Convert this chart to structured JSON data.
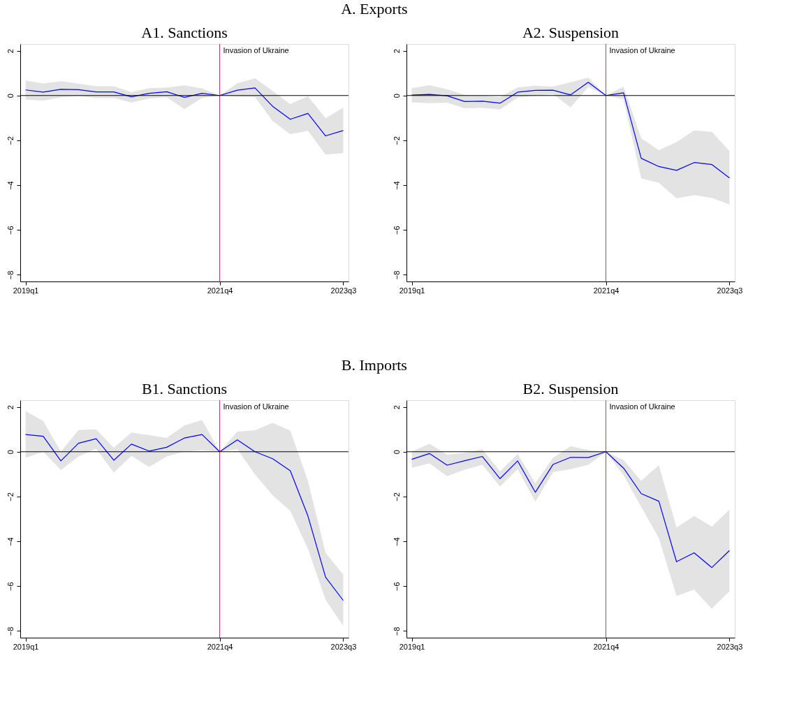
{
  "chart_data": [
    {
      "type": "line",
      "title": "A1. Sanctions",
      "annotations": [
        "A. Exports"
      ],
      "categories": [
        "2019q1",
        null,
        null,
        null,
        null,
        null,
        null,
        null,
        null,
        null,
        null,
        "2021q4",
        null,
        null,
        null,
        null,
        null,
        null,
        "2023q3"
      ],
      "series": [
        {
          "color": "#0000ff",
          "values": [
            0.25,
            0.15,
            0.28,
            0.26,
            0.16,
            0.16,
            -0.06,
            0.1,
            0.17,
            -0.08,
            0.1,
            0,
            0.24,
            0.34,
            -0.48,
            -1.06,
            -0.8,
            -1.8,
            -1.56
          ],
          "upper": [
            0.67,
            0.54,
            0.64,
            0.53,
            0.41,
            0.41,
            0.15,
            0.33,
            0.36,
            0.45,
            0.32,
            0,
            0.55,
            0.77,
            0.2,
            -0.38,
            -0.03,
            -1.01,
            -0.54
          ],
          "lower": [
            -0.18,
            -0.23,
            -0.08,
            -0.03,
            -0.11,
            -0.11,
            -0.31,
            -0.13,
            -0.08,
            -0.61,
            -0.11,
            0,
            -0.05,
            -0.07,
            -1.14,
            -1.73,
            -1.57,
            -2.63,
            -2.57
          ]
        }
      ],
      "ylim": [
        -8.3,
        2.3
      ],
      "yticks": [
        -8,
        -6,
        -4,
        -2,
        0,
        2
      ],
      "ref_lines": [
        {
          "axis": "x",
          "value": "2021q4",
          "label": "Invasion of Ukraine",
          "color": "#d8315b"
        },
        {
          "axis": "y",
          "value": 0,
          "color": "#000000"
        }
      ]
    },
    {
      "type": "line",
      "title": "A2. Suspension",
      "categories": [
        "2019q1",
        null,
        null,
        null,
        null,
        null,
        null,
        null,
        null,
        null,
        null,
        "2021q4",
        null,
        null,
        null,
        null,
        null,
        null,
        "2023q3"
      ],
      "series": [
        {
          "color": "#0000ff",
          "values": [
            0.02,
            0.05,
            -0.01,
            -0.27,
            -0.25,
            -0.34,
            0.15,
            0.23,
            0.24,
            0.03,
            0.59,
            0,
            0.12,
            -2.8,
            -3.17,
            -3.34,
            -2.99,
            -3.08,
            -3.68
          ],
          "upper": [
            0.33,
            0.46,
            0.28,
            0.03,
            0.01,
            -0.07,
            0.36,
            0.44,
            0.4,
            0.59,
            0.8,
            0,
            0.4,
            -1.91,
            -2.44,
            -2.08,
            -1.56,
            -1.62,
            -2.48
          ],
          "lower": [
            -0.3,
            -0.34,
            -0.32,
            -0.57,
            -0.55,
            -0.62,
            -0.09,
            -0.01,
            0.06,
            -0.53,
            0.38,
            0,
            -0.16,
            -3.7,
            -3.9,
            -4.59,
            -4.44,
            -4.57,
            -4.86
          ]
        }
      ],
      "ylim": [
        -8.3,
        2.3
      ],
      "yticks": [
        -8,
        -6,
        -4,
        -2,
        0,
        2
      ],
      "ref_lines": [
        {
          "axis": "x",
          "value": "2021q4",
          "label": "Invasion of Ukraine",
          "color": "#d8315b"
        },
        {
          "axis": "y",
          "value": 0,
          "color": "#000000"
        }
      ]
    },
    {
      "type": "line",
      "title": "B1. Sanctions",
      "annotations": [
        "B. Imports"
      ],
      "categories": [
        "2019q1",
        null,
        null,
        null,
        null,
        null,
        null,
        null,
        null,
        null,
        null,
        "2021q4",
        null,
        null,
        null,
        null,
        null,
        null,
        "2023q3"
      ],
      "series": [
        {
          "color": "#0000ff",
          "values": [
            0.77,
            0.69,
            -0.41,
            0.38,
            0.58,
            -0.38,
            0.34,
            0.03,
            0.2,
            0.61,
            0.77,
            0,
            0.53,
            0,
            -0.31,
            -0.85,
            -2.87,
            -5.6,
            -6.64
          ],
          "upper": [
            1.82,
            1.37,
            0,
            0.97,
            1.0,
            0.18,
            0.86,
            0.74,
            0.62,
            1.17,
            1.42,
            0,
            0.9,
            0.96,
            1.29,
            0.94,
            -1.3,
            -4.51,
            -5.49
          ],
          "lower": [
            -0.27,
            0,
            -0.82,
            -0.21,
            0.13,
            -0.93,
            -0.19,
            -0.68,
            -0.21,
            0.01,
            0.07,
            0,
            0.11,
            -1.01,
            -1.94,
            -2.64,
            -4.33,
            -6.61,
            -7.77
          ]
        }
      ],
      "ylim": [
        -8.3,
        2.3
      ],
      "yticks": [
        -8,
        -6,
        -4,
        -2,
        0,
        2
      ],
      "ref_lines": [
        {
          "axis": "x",
          "value": "2021q4",
          "label": "Invasion of Ukraine",
          "color": "#d8315b"
        },
        {
          "axis": "y",
          "value": 0,
          "color": "#000000"
        }
      ]
    },
    {
      "type": "line",
      "title": "B2. Suspension",
      "categories": [
        "2019q1",
        null,
        null,
        null,
        null,
        null,
        null,
        null,
        null,
        null,
        null,
        "2021q4",
        null,
        null,
        null,
        null,
        null,
        null,
        "2023q3"
      ],
      "series": [
        {
          "color": "#0000ff",
          "values": [
            -0.34,
            -0.08,
            -0.6,
            -0.4,
            -0.21,
            -1.2,
            -0.41,
            -1.81,
            -0.57,
            -0.25,
            -0.26,
            0,
            -0.73,
            -1.87,
            -2.21,
            -4.91,
            -4.51,
            -5.17,
            -4.41
          ],
          "upper": [
            0,
            0.36,
            -0.13,
            -0.05,
            0.11,
            -0.87,
            -0.1,
            -1.41,
            -0.27,
            0.25,
            0.07,
            0,
            -0.37,
            -1.3,
            -0.6,
            -3.38,
            -2.87,
            -3.34,
            -2.59
          ],
          "lower": [
            -0.72,
            -0.52,
            -1.09,
            -0.8,
            -0.58,
            -1.55,
            -0.78,
            -2.23,
            -0.91,
            -0.78,
            -0.58,
            0,
            -1.05,
            -2.46,
            -3.85,
            -6.44,
            -6.16,
            -7.01,
            -6.23
          ]
        }
      ],
      "ylim": [
        -8.3,
        2.3
      ],
      "yticks": [
        -8,
        -6,
        -4,
        -2,
        0,
        2
      ],
      "ref_lines": [
        {
          "axis": "x",
          "value": "2021q4",
          "label": "Invasion of Ukraine",
          "color": "#d8315b"
        },
        {
          "axis": "y",
          "value": 0,
          "color": "#000000"
        }
      ]
    }
  ]
}
